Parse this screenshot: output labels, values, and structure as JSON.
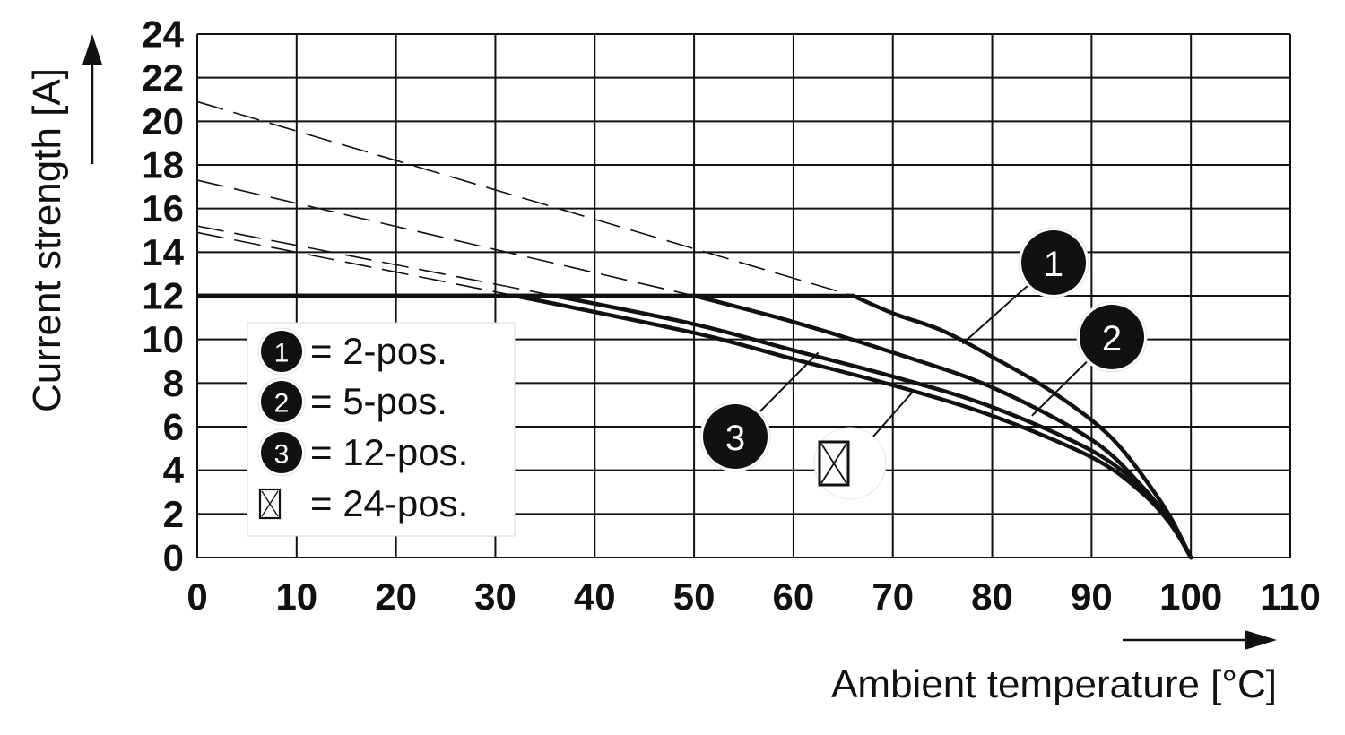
{
  "chart_data": {
    "type": "line",
    "xlabel": "Ambient temperature [°C]",
    "ylabel": "Current strength [A]",
    "xlim": [
      0,
      110
    ],
    "ylim": [
      0,
      24
    ],
    "x_ticks": [
      0,
      10,
      20,
      30,
      40,
      50,
      60,
      70,
      80,
      90,
      100,
      110
    ],
    "y_ticks": [
      0,
      2,
      4,
      6,
      8,
      10,
      12,
      14,
      16,
      18,
      20,
      22,
      24
    ],
    "grid": true,
    "current_limit": 12,
    "series": [
      {
        "name": "2-pos.",
        "marker": "1",
        "points": [
          [
            0,
            12
          ],
          [
            66,
            12
          ],
          [
            70,
            11.2
          ],
          [
            75,
            10.4
          ],
          [
            80,
            9.2
          ],
          [
            85,
            7.9
          ],
          [
            90,
            6.3
          ],
          [
            93,
            5.0
          ],
          [
            96,
            3.2
          ],
          [
            98,
            1.8
          ],
          [
            100,
            0
          ]
        ],
        "dashed": [
          [
            0,
            20.9
          ],
          [
            66,
            12
          ]
        ]
      },
      {
        "name": "5-pos.",
        "marker": "2",
        "points": [
          [
            0,
            12
          ],
          [
            50,
            12
          ],
          [
            60,
            10.8
          ],
          [
            70,
            9.4
          ],
          [
            80,
            7.8
          ],
          [
            90,
            5.4
          ],
          [
            95,
            3.3
          ],
          [
            98,
            1.6
          ],
          [
            100,
            0
          ]
        ],
        "dashed": [
          [
            0,
            17.3
          ],
          [
            50,
            12
          ]
        ]
      },
      {
        "name": "12-pos.",
        "marker": "3",
        "points": [
          [
            0,
            12
          ],
          [
            36,
            12
          ],
          [
            50,
            10.7
          ],
          [
            60,
            9.5
          ],
          [
            70,
            8.3
          ],
          [
            80,
            6.9
          ],
          [
            90,
            4.9
          ],
          [
            95,
            3.2
          ],
          [
            98,
            1.6
          ],
          [
            100,
            0
          ]
        ],
        "dashed": [
          [
            0,
            15.2
          ],
          [
            36,
            12
          ]
        ]
      },
      {
        "name": "24-pos.",
        "marker": "boxed-x",
        "points": [
          [
            0,
            12
          ],
          [
            32,
            12
          ],
          [
            50,
            10.3
          ],
          [
            60,
            9.1
          ],
          [
            70,
            7.9
          ],
          [
            80,
            6.5
          ],
          [
            90,
            4.6
          ],
          [
            95,
            3.0
          ],
          [
            98,
            1.5
          ],
          [
            100,
            0
          ]
        ],
        "dashed": [
          [
            0,
            14.9
          ],
          [
            32,
            12
          ]
        ]
      }
    ],
    "legend": {
      "placement": "lower-left",
      "entries": [
        {
          "marker": "1",
          "label": "= 2-pos."
        },
        {
          "marker": "2",
          "label": "= 5-pos."
        },
        {
          "marker": "3",
          "label": "= 12-pos."
        },
        {
          "marker": "boxed-x",
          "label": "= 24-pos."
        }
      ]
    },
    "annotations": [
      {
        "marker": "1",
        "target": [
          77,
          9.8
        ]
      },
      {
        "marker": "2",
        "target": [
          84,
          6.5
        ]
      },
      {
        "marker": "3",
        "target": [
          62.5,
          9.4
        ]
      },
      {
        "marker": "boxed-x",
        "target": [
          72,
          7.6
        ]
      }
    ]
  }
}
